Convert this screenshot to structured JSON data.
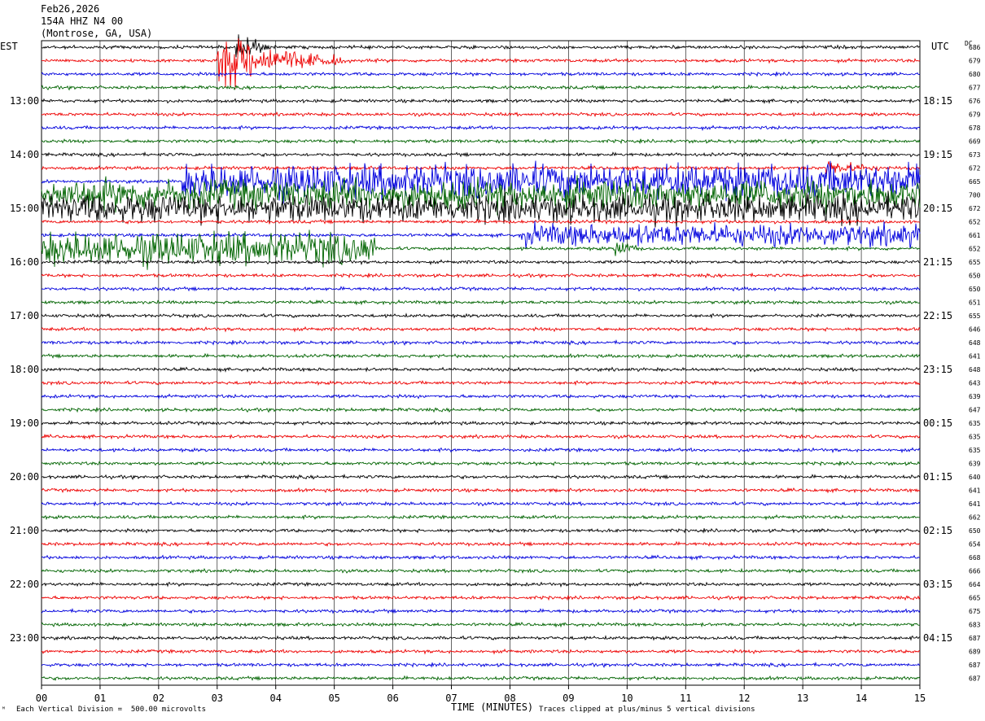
{
  "header": {
    "date": "Feb26,2026",
    "station": "154A HHZ N4 00",
    "location": "(Montrose, GA, USA)"
  },
  "labels": {
    "left_timezone": "EST",
    "right_timezone": "UTC",
    "dc_label": "DC",
    "footer_left": "Each Vertical Division =  500.00 microvolts",
    "footer_center": "TIME (MINUTES)",
    "footer_right": "Traces clipped at plus/minus 5 vertical divisions",
    "corner_mark": "ᴹ"
  },
  "colors": {
    "trace_cycle": [
      "#000000",
      "#ee0000",
      "#0000dd",
      "#006400"
    ],
    "grid": "#000000"
  },
  "chart_data": {
    "type": "line",
    "title": "",
    "xlabel": "TIME (MINUTES)",
    "ylabel": "",
    "xlim": [
      0,
      15
    ],
    "x_ticks": [
      "00",
      "01",
      "02",
      "03",
      "04",
      "05",
      "06",
      "07",
      "08",
      "09",
      "10",
      "11",
      "12",
      "13",
      "14",
      "15"
    ],
    "rows": 48,
    "row_minutes": 15,
    "left_time_labels": [
      "13:00",
      "14:00",
      "15:00",
      "16:00",
      "17:00",
      "18:00",
      "19:00",
      "20:00",
      "21:00",
      "22:00",
      "23:00"
    ],
    "right_time_labels": [
      "18:15",
      "19:15",
      "20:15",
      "21:15",
      "22:15",
      "23:15",
      "00:15",
      "01:15",
      "02:15",
      "03:15",
      "04:15"
    ],
    "dc_offsets": [
      686,
      679,
      680,
      677,
      676,
      679,
      678,
      669,
      673,
      672,
      665,
      700,
      672,
      652,
      661,
      652,
      655,
      650,
      650,
      651,
      655,
      646,
      648,
      641,
      648,
      643,
      639,
      647,
      635,
      635,
      635,
      639,
      640,
      641,
      641,
      662,
      650,
      654,
      668,
      666,
      664,
      665,
      675,
      683,
      687,
      689,
      687,
      687
    ],
    "events": [
      {
        "row": 1,
        "start_min": 3.0,
        "end_min": 5.2,
        "amplitude_divisions": 5
      },
      {
        "row": 0,
        "start_min": 3.3,
        "end_min": 3.9,
        "amplitude_divisions": 4
      },
      {
        "row": 10,
        "start_min": 2.4,
        "end_min": 15.0,
        "amplitude_divisions": 2.5
      },
      {
        "row": 11,
        "start_min": 0.0,
        "end_min": 15.0,
        "amplitude_divisions": 2.2
      },
      {
        "row": 12,
        "start_min": 0.0,
        "end_min": 15.0,
        "amplitude_divisions": 2.0
      },
      {
        "row": 9,
        "start_min": 13.4,
        "end_min": 15.0,
        "amplitude_divisions": 1.3
      },
      {
        "row": 14,
        "start_min": 8.2,
        "end_min": 15.0,
        "amplitude_divisions": 1.6
      },
      {
        "row": 15,
        "start_min": 0.0,
        "end_min": 5.7,
        "amplitude_divisions": 2.4
      },
      {
        "row": 15,
        "start_min": 9.8,
        "end_min": 10.3,
        "amplitude_divisions": 2.0
      }
    ],
    "clip_divisions": 5,
    "grid": true
  }
}
